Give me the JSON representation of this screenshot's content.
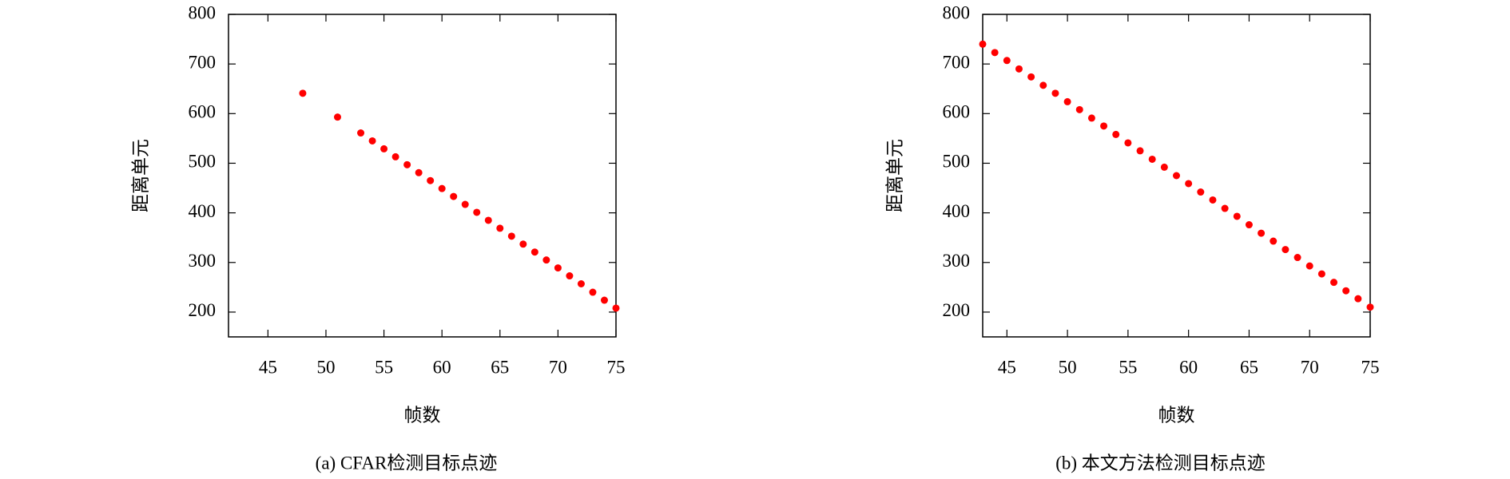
{
  "chart_data": [
    {
      "type": "scatter",
      "title": "(a) CFAR检测目标点迹",
      "xlabel": "帧数",
      "ylabel": "距离单元",
      "x": [
        48,
        51,
        53,
        54,
        55,
        56,
        57,
        58,
        59,
        60,
        61,
        62,
        63,
        64,
        65,
        66,
        67,
        68,
        69,
        70,
        71,
        72,
        73,
        74,
        75
      ],
      "values": [
        641,
        593,
        561,
        545,
        529,
        513,
        497,
        481,
        465,
        449,
        433,
        417,
        401,
        385,
        369,
        353,
        337,
        321,
        305,
        289,
        273,
        257,
        240,
        224,
        208
      ],
      "color": "#ff0000",
      "xlim": [
        41.6,
        75
      ],
      "xticks": [
        45,
        50,
        55,
        60,
        65,
        70,
        75
      ],
      "ylim": [
        150,
        800
      ],
      "yticks": [
        200,
        300,
        400,
        500,
        600,
        700,
        800
      ]
    },
    {
      "type": "scatter",
      "title": "(b) 本文方法检测目标点迹",
      "xlabel": "帧数",
      "ylabel": "距离单元",
      "x": [
        43,
        44,
        45,
        46,
        47,
        48,
        49,
        50,
        51,
        52,
        53,
        54,
        55,
        56,
        57,
        58,
        59,
        60,
        61,
        62,
        63,
        64,
        65,
        66,
        67,
        68,
        69,
        70,
        71,
        72,
        73,
        74,
        75
      ],
      "values": [
        740,
        723,
        707,
        690,
        674,
        657,
        641,
        624,
        608,
        591,
        575,
        558,
        541,
        525,
        508,
        492,
        475,
        459,
        442,
        426,
        409,
        393,
        376,
        359,
        343,
        326,
        310,
        293,
        277,
        260,
        243,
        227,
        210
      ],
      "color": "#ff0000",
      "xlim": [
        43,
        75
      ],
      "xticks": [
        45,
        50,
        55,
        60,
        65,
        70,
        75
      ],
      "ylim": [
        150,
        800
      ],
      "yticks": [
        200,
        300,
        400,
        500,
        600,
        700,
        800
      ]
    }
  ]
}
